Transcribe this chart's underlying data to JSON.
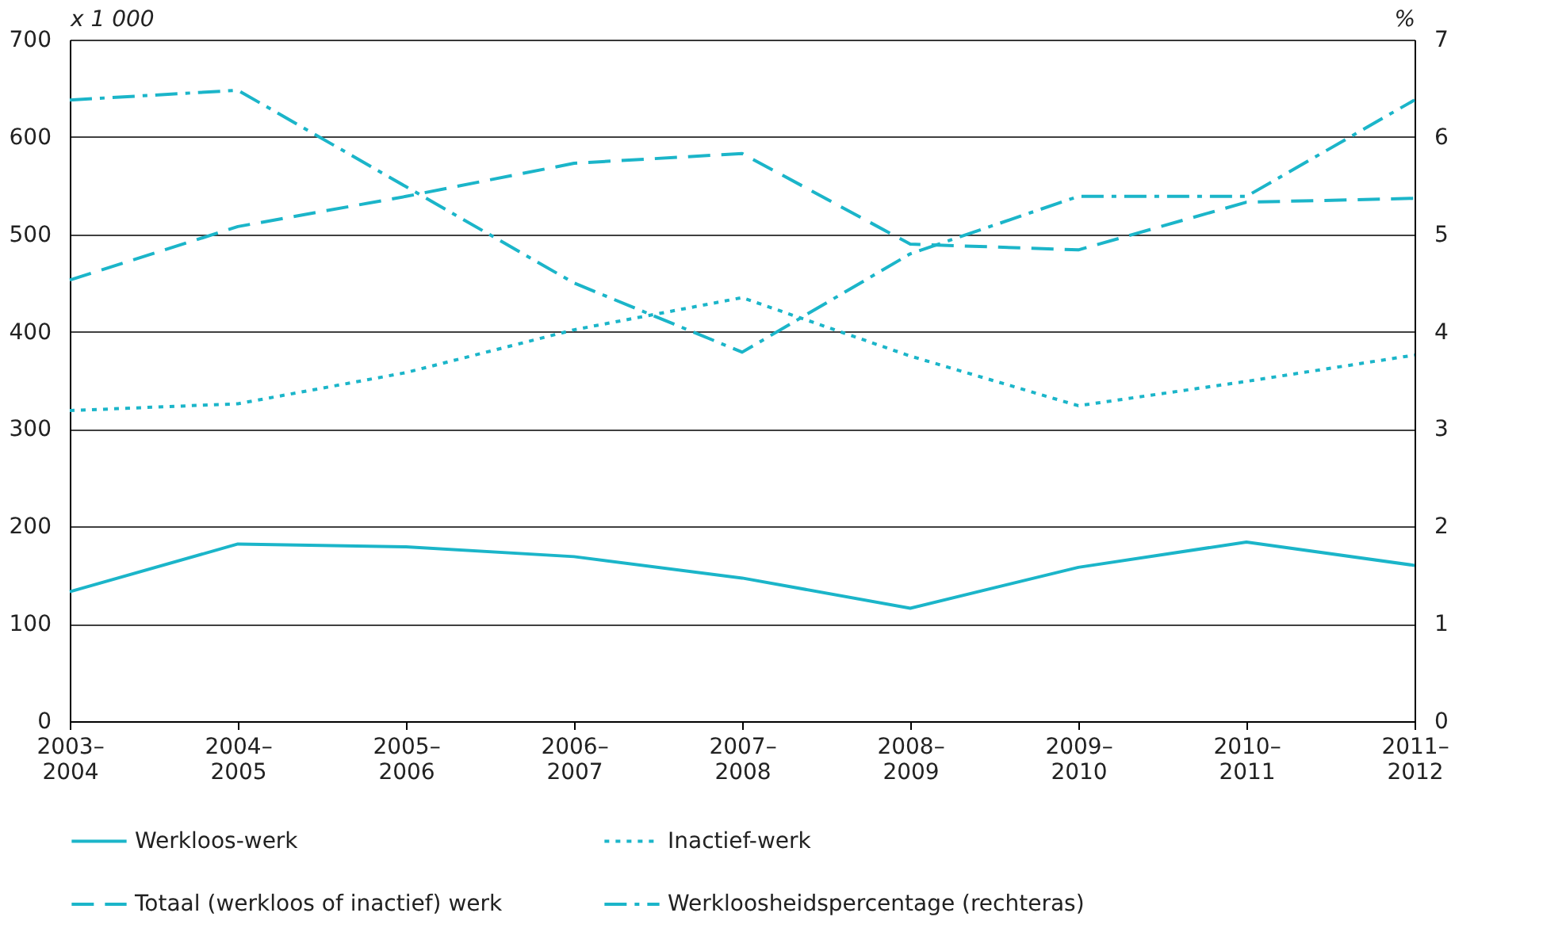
{
  "chart_data": {
    "type": "line",
    "categories": [
      "2003–\n2004",
      "2004–\n2005",
      "2005–\n2006",
      "2006–\n2007",
      "2007–\n2008",
      "2008–\n2009",
      "2009–\n2010",
      "2010–\n2011",
      "2011–\n2012"
    ],
    "series": [
      {
        "name": "Werkloos-werk",
        "color": "#1bb5c9",
        "line_style": "solid",
        "values": [
          133,
          182,
          179,
          169,
          147,
          116,
          158,
          184,
          160
        ]
      },
      {
        "name": "Inactief-werk",
        "color": "#1bb5c9",
        "line_style": "dotted",
        "values": [
          319,
          326,
          358,
          402,
          435,
          375,
          324,
          349,
          376
        ]
      },
      {
        "name": "Totaal (werkloos of inactief) werk",
        "color": "#1bb5c9",
        "line_style": "dashed",
        "values": [
          453,
          508,
          539,
          573,
          583,
          490,
          484,
          533,
          537
        ]
      },
      {
        "name": "Werkloosheidspercentage (rechteras)",
        "color": "#1bb5c9",
        "line_style": "dashdot",
        "axis": "y2",
        "values": [
          6.38,
          6.48,
          5.49,
          4.5,
          3.79,
          4.8,
          5.39,
          5.39,
          6.38
        ]
      }
    ],
    "ylabel": "x 1 000",
    "y2label": "%",
    "ylim": [
      0,
      700
    ],
    "yticks": [
      0,
      100,
      200,
      300,
      400,
      500,
      600,
      700
    ],
    "y2lim": [
      0,
      7
    ],
    "y2ticks": [
      0,
      1,
      2,
      3,
      4,
      5,
      6,
      7
    ],
    "grid": "y",
    "legend": "bottom"
  }
}
